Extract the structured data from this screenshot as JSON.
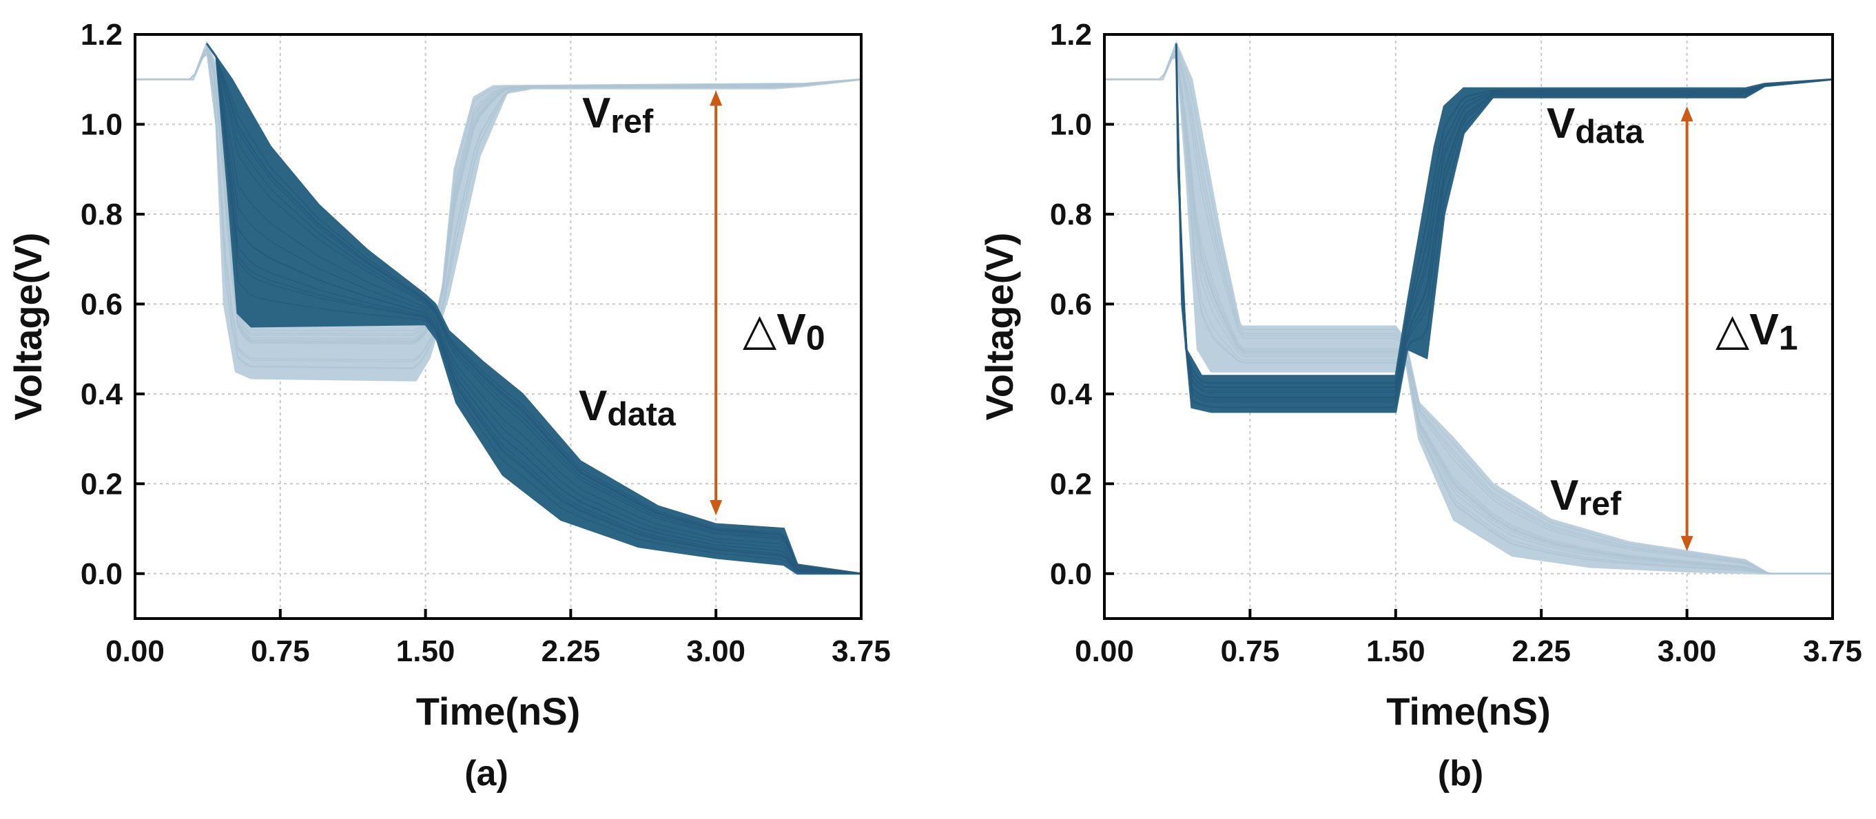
{
  "colors": {
    "dark": "#2c6484",
    "light": "#bccfdc",
    "arrow": "#cc5a14",
    "grid": "#c8c8c8",
    "axis": "#000000"
  },
  "chart_data": [
    {
      "id": "a",
      "type": "line",
      "caption": "(a)",
      "xlabel": "Time(nS)",
      "ylabel": "Voltage(V)",
      "xlim": [
        0,
        3.75
      ],
      "ylim": [
        -0.1,
        1.2
      ],
      "xticks": [
        "0.00",
        "0.75",
        "1.50",
        "2.25",
        "3.00",
        "3.75"
      ],
      "yticks": [
        "0.0",
        "0.2",
        "0.4",
        "0.6",
        "0.8",
        "1.0",
        "1.2"
      ],
      "grid": true,
      "series": [
        {
          "name": "Vref",
          "label_main": "V",
          "label_sub": "ref",
          "color": "light",
          "upper": [
            [
              0,
              1.1
            ],
            [
              0.3,
              1.1
            ],
            [
              0.37,
              1.18
            ],
            [
              0.42,
              1.13
            ],
            [
              0.48,
              0.9
            ],
            [
              0.52,
              0.62
            ],
            [
              0.58,
              0.56
            ],
            [
              1.45,
              0.56
            ],
            [
              1.58,
              0.6
            ],
            [
              1.65,
              0.9
            ],
            [
              1.75,
              1.06
            ],
            [
              1.85,
              1.085
            ],
            [
              3.3,
              1.09
            ],
            [
              3.45,
              1.09
            ],
            [
              3.75,
              1.1
            ]
          ],
          "lower": [
            [
              0,
              1.1
            ],
            [
              0.3,
              1.1
            ],
            [
              0.37,
              1.17
            ],
            [
              0.42,
              1.0
            ],
            [
              0.46,
              0.6
            ],
            [
              0.52,
              0.45
            ],
            [
              0.6,
              0.435
            ],
            [
              1.45,
              0.43
            ],
            [
              1.52,
              0.48
            ],
            [
              1.62,
              0.62
            ],
            [
              1.78,
              0.93
            ],
            [
              1.92,
              1.07
            ],
            [
              2.05,
              1.08
            ],
            [
              3.3,
              1.08
            ],
            [
              3.45,
              1.085
            ],
            [
              3.75,
              1.1
            ]
          ]
        },
        {
          "name": "Vdata",
          "label_main": "V",
          "label_sub": "data",
          "color": "dark",
          "upper": [
            [
              0.37,
              1.18
            ],
            [
              0.5,
              1.1
            ],
            [
              0.7,
              0.95
            ],
            [
              0.95,
              0.82
            ],
            [
              1.2,
              0.72
            ],
            [
              1.5,
              0.62
            ],
            [
              1.55,
              0.6
            ],
            [
              1.62,
              0.54
            ],
            [
              1.8,
              0.47
            ],
            [
              2.0,
              0.4
            ],
            [
              2.3,
              0.25
            ],
            [
              2.7,
              0.15
            ],
            [
              3.0,
              0.11
            ],
            [
              3.35,
              0.1
            ],
            [
              3.42,
              0.02
            ],
            [
              3.75,
              0
            ]
          ],
          "lower": [
            [
              0.42,
              1.15
            ],
            [
              0.48,
              0.85
            ],
            [
              0.53,
              0.58
            ],
            [
              0.6,
              0.55
            ],
            [
              1.5,
              0.555
            ],
            [
              1.56,
              0.52
            ],
            [
              1.66,
              0.38
            ],
            [
              1.9,
              0.22
            ],
            [
              2.2,
              0.12
            ],
            [
              2.6,
              0.06
            ],
            [
              3.0,
              0.035
            ],
            [
              3.35,
              0.02
            ],
            [
              3.42,
              0.0
            ],
            [
              3.75,
              0
            ]
          ]
        }
      ],
      "annotation": {
        "label_main": "△V",
        "label_sub": "0",
        "x": 3.0,
        "y_top": 1.075,
        "y_bottom": 0.13
      }
    },
    {
      "id": "b",
      "type": "line",
      "caption": "(b)",
      "xlabel": "Time(nS)",
      "ylabel": "Voltage(V)",
      "xlim": [
        0,
        3.75
      ],
      "ylim": [
        -0.1,
        1.2
      ],
      "xticks": [
        "0.00",
        "0.75",
        "1.50",
        "2.25",
        "3.00",
        "3.75"
      ],
      "yticks": [
        "0.0",
        "0.2",
        "0.4",
        "0.6",
        "0.8",
        "1.0",
        "1.2"
      ],
      "grid": true,
      "series": [
        {
          "name": "Vref",
          "label_main": "V",
          "label_sub": "ref",
          "color": "light",
          "upper": [
            [
              0,
              1.1
            ],
            [
              0.3,
              1.1
            ],
            [
              0.37,
              1.18
            ],
            [
              0.45,
              1.1
            ],
            [
              0.6,
              0.75
            ],
            [
              0.7,
              0.55
            ],
            [
              1.5,
              0.55
            ],
            [
              1.55,
              0.52
            ],
            [
              1.62,
              0.38
            ],
            [
              1.8,
              0.3
            ],
            [
              2.0,
              0.2
            ],
            [
              2.3,
              0.12
            ],
            [
              2.7,
              0.07
            ],
            [
              3.0,
              0.05
            ],
            [
              3.3,
              0.03
            ],
            [
              3.42,
              0.0
            ],
            [
              3.75,
              0
            ]
          ],
          "lower": [
            [
              0,
              1.1
            ],
            [
              0.3,
              1.1
            ],
            [
              0.37,
              1.17
            ],
            [
              0.42,
              0.9
            ],
            [
              0.48,
              0.5
            ],
            [
              0.55,
              0.45
            ],
            [
              1.5,
              0.45
            ],
            [
              1.55,
              0.48
            ],
            [
              1.62,
              0.3
            ],
            [
              1.8,
              0.12
            ],
            [
              2.1,
              0.04
            ],
            [
              2.5,
              0.015
            ],
            [
              3.0,
              0.005
            ],
            [
              3.42,
              0.0
            ],
            [
              3.75,
              0
            ]
          ]
        },
        {
          "name": "Vdata",
          "label_main": "V",
          "label_sub": "data",
          "color": "dark",
          "upper": [
            [
              0.37,
              1.18
            ],
            [
              0.38,
              0.9
            ],
            [
              0.42,
              0.5
            ],
            [
              0.5,
              0.44
            ],
            [
              1.5,
              0.44
            ],
            [
              1.56,
              0.6
            ],
            [
              1.62,
              0.75
            ],
            [
              1.7,
              0.95
            ],
            [
              1.75,
              1.04
            ],
            [
              1.85,
              1.08
            ],
            [
              3.3,
              1.08
            ],
            [
              3.4,
              1.09
            ],
            [
              3.75,
              1.1
            ]
          ],
          "lower": [
            [
              0.37,
              1.16
            ],
            [
              0.4,
              0.6
            ],
            [
              0.45,
              0.37
            ],
            [
              0.55,
              0.36
            ],
            [
              1.5,
              0.36
            ],
            [
              1.56,
              0.5
            ],
            [
              1.66,
              0.48
            ],
            [
              1.75,
              0.8
            ],
            [
              1.85,
              0.98
            ],
            [
              2.0,
              1.06
            ],
            [
              3.3,
              1.06
            ],
            [
              3.4,
              1.085
            ],
            [
              3.75,
              1.1
            ]
          ]
        }
      ],
      "annotation": {
        "label_main": "△V",
        "label_sub": "1",
        "x": 3.0,
        "y_top": 1.04,
        "y_bottom": 0.05
      }
    }
  ]
}
